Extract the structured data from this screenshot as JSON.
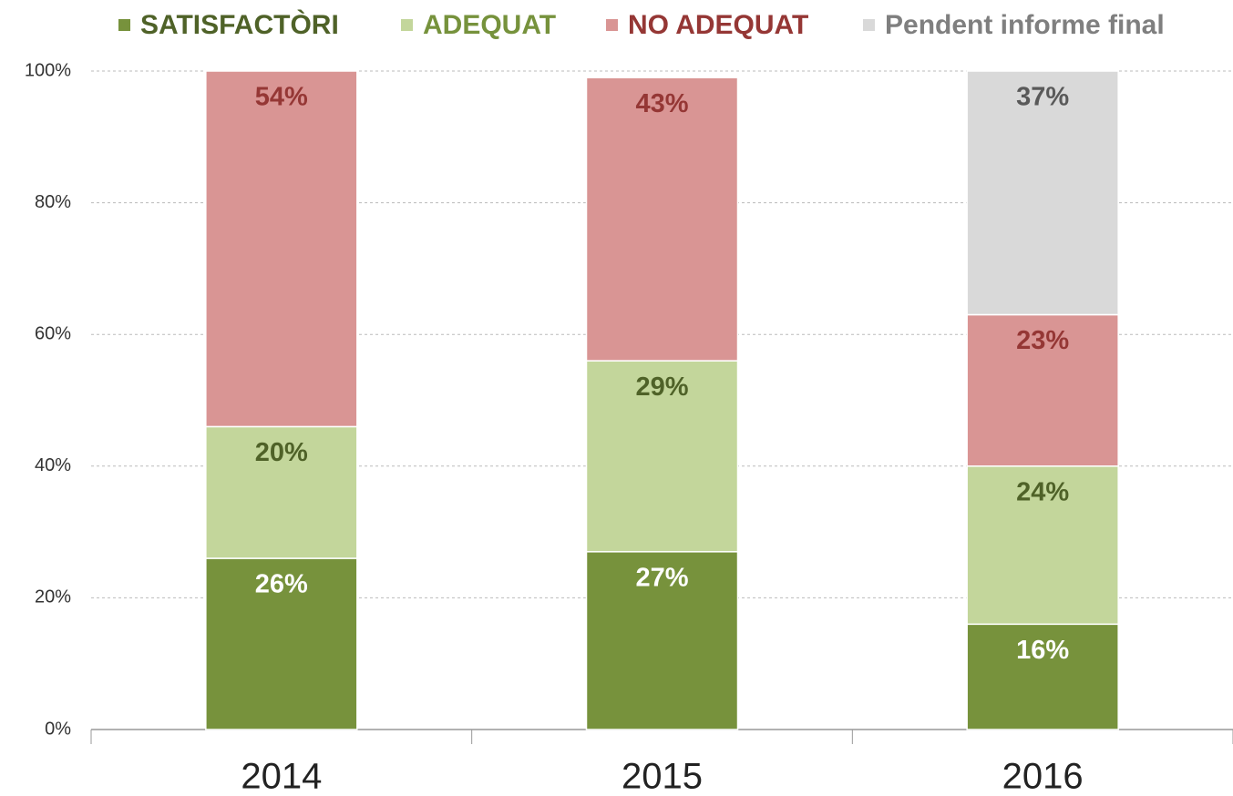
{
  "chart_data": {
    "type": "stacked_bar",
    "categories": [
      "2014",
      "2015",
      "2016"
    ],
    "series": [
      {
        "name": "SATISFACTÒRI",
        "color": "#77923c",
        "label_color": "#ffffff",
        "legend_color": "#4f6228",
        "values": [
          26,
          27,
          16
        ],
        "value_labels": [
          "26%",
          "27%",
          "16%"
        ]
      },
      {
        "name": "ADEQUAT",
        "color": "#c3d69b",
        "label_color": "#4f6228",
        "legend_color": "#76923c",
        "values": [
          20,
          29,
          24
        ],
        "value_labels": [
          "20%",
          "29%",
          "24%"
        ]
      },
      {
        "name": "NO ADEQUAT",
        "color": "#d99594",
        "label_color": "#953735",
        "legend_color": "#953735",
        "values": [
          54,
          43,
          23
        ],
        "value_labels": [
          "54%",
          "43%",
          "23%"
        ]
      },
      {
        "name": "Pendent informe final",
        "color": "#d9d9d9",
        "label_color": "#595959",
        "legend_color": "#7f7f7f",
        "values": [
          null,
          null,
          37
        ],
        "value_labels": [
          null,
          null,
          "37%"
        ]
      }
    ],
    "ylim": [
      0,
      100
    ],
    "yticks": [
      {
        "value": 0,
        "label": "0%"
      },
      {
        "value": 20,
        "label": "20%"
      },
      {
        "value": 40,
        "label": "40%"
      },
      {
        "value": 60,
        "label": "60%"
      },
      {
        "value": 80,
        "label": "80%"
      },
      {
        "value": 100,
        "label": "100%"
      }
    ],
    "grid": true,
    "legend": "top"
  }
}
